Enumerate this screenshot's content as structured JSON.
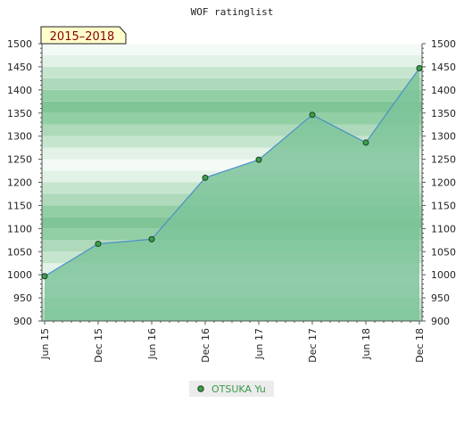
{
  "chart_data": {
    "type": "area",
    "title": "WOF ratinglist",
    "annotation": "2015–2018",
    "ylim": [
      900,
      1500
    ],
    "y_ticks": [
      900,
      950,
      1000,
      1050,
      1100,
      1150,
      1200,
      1250,
      1300,
      1350,
      1400,
      1450,
      1500
    ],
    "x_tick_labels": [
      "Jun 15",
      "Dec 15",
      "Jun 16",
      "Dec 16",
      "Jun 17",
      "Dec 17",
      "Jun 18",
      "Dec 18"
    ],
    "grid": false,
    "legend_position": "bottom-center",
    "series": [
      {
        "name": "OTSUKA Yu",
        "x": [
          "Jun 15",
          "Dec 15",
          "Jun 16",
          "Dec 16",
          "Jun 17",
          "Dec 17",
          "Jun 18",
          "Dec 18"
        ],
        "values": [
          997,
          1067,
          1077,
          1210,
          1249,
          1346,
          1286,
          1447
        ]
      }
    ],
    "colors": {
      "line": "#4a90c8",
      "fill": "#7dc49a",
      "marker": "#3aa04a",
      "marker_stroke": "#1e3d25",
      "band_colors": [
        "#7fc595",
        "#93cfa5",
        "#aed9ba",
        "#c6e5cf",
        "#e3f2e7",
        "#f4faf6"
      ],
      "annotation_bg": "#ffffcc"
    }
  }
}
